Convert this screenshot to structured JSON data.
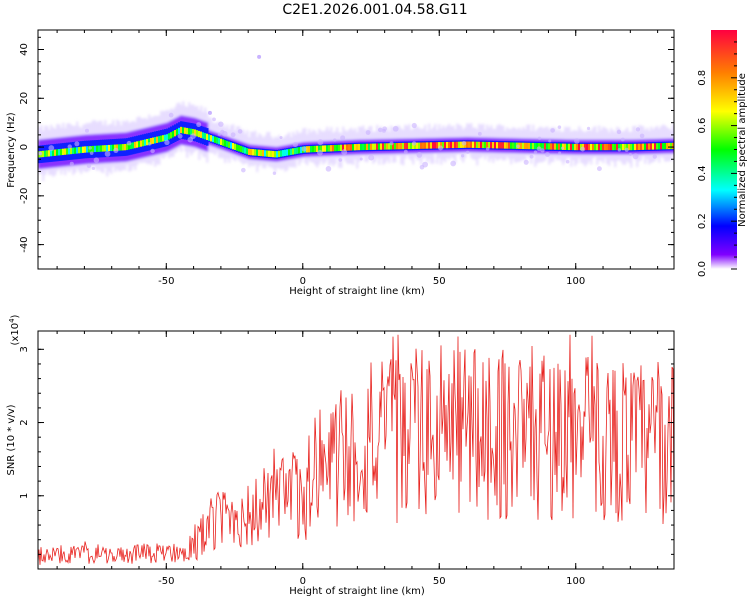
{
  "figure": {
    "title": "C2E1.2026.001.04.58.G11"
  },
  "chart_data": [
    {
      "type": "heatmap",
      "title": "C2E1.2026.001.04.58.G11",
      "xlabel": "Height of straight line (km)",
      "ylabel": "Frequency (Hz)",
      "xlim": [
        -97,
        136
      ],
      "ylim": [
        -50,
        48
      ],
      "x_ticks": [
        -50,
        0,
        50,
        100
      ],
      "y_ticks": [
        -40,
        -20,
        0,
        20,
        40
      ],
      "x_tick_labels": [
        "-50",
        "0",
        "50",
        "100"
      ],
      "y_tick_labels": [
        "-40",
        "-20",
        "0",
        "20",
        "40"
      ],
      "colorbar": {
        "label": "Normalized spectral amplitude",
        "range": [
          0,
          1
        ],
        "ticks": [
          0.0,
          0.2,
          0.4,
          0.6,
          0.8
        ],
        "tick_labels": [
          "0.0",
          "0.2",
          "0.4",
          "0.6",
          "0.8"
        ]
      },
      "ridge": {
        "x": [
          -97,
          -80,
          -65,
          -50,
          -45,
          -40,
          -30,
          -20,
          -10,
          0,
          20,
          40,
          60,
          80,
          100,
          120,
          136
        ],
        "y": [
          -3,
          -1,
          0,
          4,
          7,
          6,
          2,
          -2,
          -3,
          -1,
          0,
          0.5,
          1,
          0.5,
          0,
          0,
          0.5
        ]
      }
    },
    {
      "type": "line",
      "xlabel": "Height of straight line (km)",
      "ylabel": "SNR (10 * v/v)",
      "y_multiplier": "(x10",
      "y_multiplier_exp": "4",
      "y_multiplier_close": ")",
      "xlim": [
        -97,
        136
      ],
      "ylim": [
        0,
        3.25
      ],
      "x_ticks": [
        -50,
        0,
        50,
        100
      ],
      "y_ticks": [
        1,
        2,
        3
      ],
      "x_tick_labels": [
        "-50",
        "0",
        "50",
        "100"
      ],
      "y_tick_labels": [
        "1",
        "2",
        "3"
      ],
      "color": "#e8221e",
      "series": [
        {
          "name": "SNR",
          "x": [
            -97,
            -90,
            -80,
            -70,
            -60,
            -50,
            -45,
            -40,
            -35,
            -30,
            -25,
            -20,
            -15,
            -10,
            -5,
            0,
            5,
            10,
            15,
            20,
            25,
            30,
            40,
            50,
            60,
            70,
            80,
            90,
            100,
            110,
            120,
            130,
            136
          ],
          "values": [
            0.15,
            0.2,
            0.2,
            0.18,
            0.2,
            0.22,
            0.25,
            0.3,
            0.55,
            0.7,
            0.75,
            0.7,
            0.85,
            0.9,
            0.95,
            1.0,
            1.2,
            1.4,
            1.55,
            1.6,
            1.7,
            1.75,
            1.8,
            1.85,
            1.9,
            1.9,
            1.85,
            1.85,
            1.8,
            1.8,
            1.75,
            1.7,
            1.7
          ]
        }
      ]
    }
  ]
}
